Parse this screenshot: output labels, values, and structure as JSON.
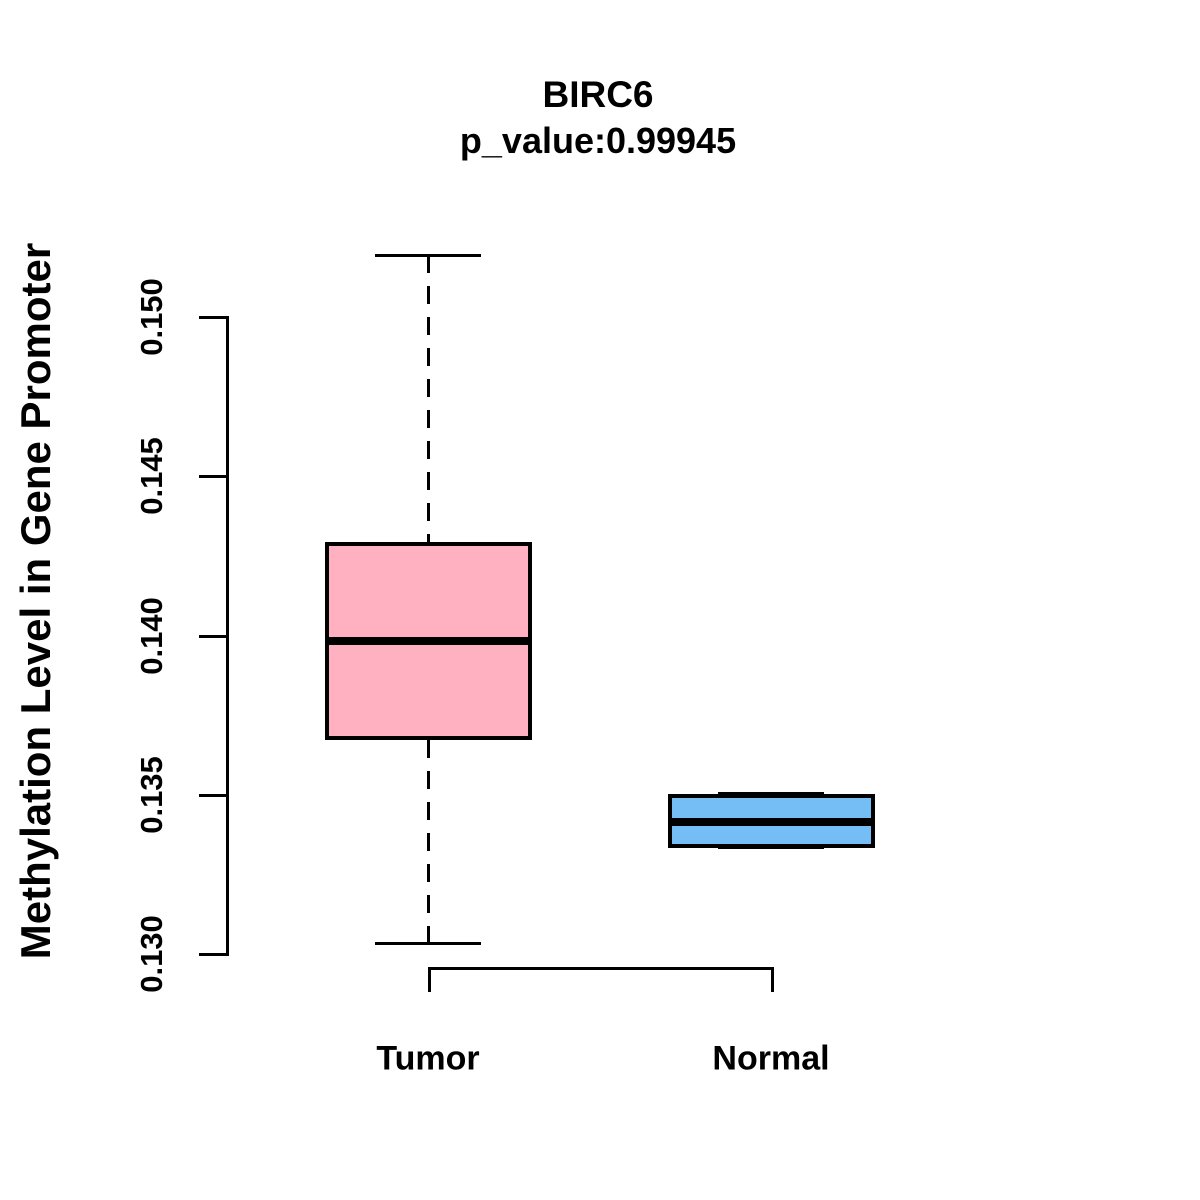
{
  "header": {
    "title": "BIRC6",
    "subtitle": "p_value:0.99945"
  },
  "axes": {
    "y_label": "Methylation Level in Gene Promoter",
    "x_label": ""
  },
  "colors": {
    "tumor_fill": "#FFB1C1",
    "normal_fill": "#74BEF5",
    "line": "#000000",
    "background": "#FFFFFF"
  },
  "chart_data": {
    "type": "boxplot",
    "title": "BIRC6",
    "subtitle": "p_value:0.99945",
    "ylabel": "Methylation Level in Gene Promoter",
    "xlabel": "",
    "categories": [
      "Tumor",
      "Normal"
    ],
    "yticks": {
      "labels": [
        "0.130",
        "0.135",
        "0.140",
        "0.145",
        "0.150"
      ],
      "values": [
        0.13,
        0.135,
        0.14,
        0.145,
        0.15
      ]
    },
    "ylim": [
      0.1295,
      0.1525
    ],
    "grid": false,
    "legend": "none",
    "series": [
      {
        "name": "Tumor",
        "fill": "#FFB1C1",
        "whisker_low": 0.1303,
        "q1": 0.1367,
        "median": 0.1398,
        "q3": 0.1429,
        "whisker_high": 0.1519
      },
      {
        "name": "Normal",
        "fill": "#74BEF5",
        "whisker_low": 0.1333,
        "q1": 0.1333,
        "median": 0.1341,
        "q3": 0.135,
        "whisker_high": 0.135
      }
    ]
  }
}
